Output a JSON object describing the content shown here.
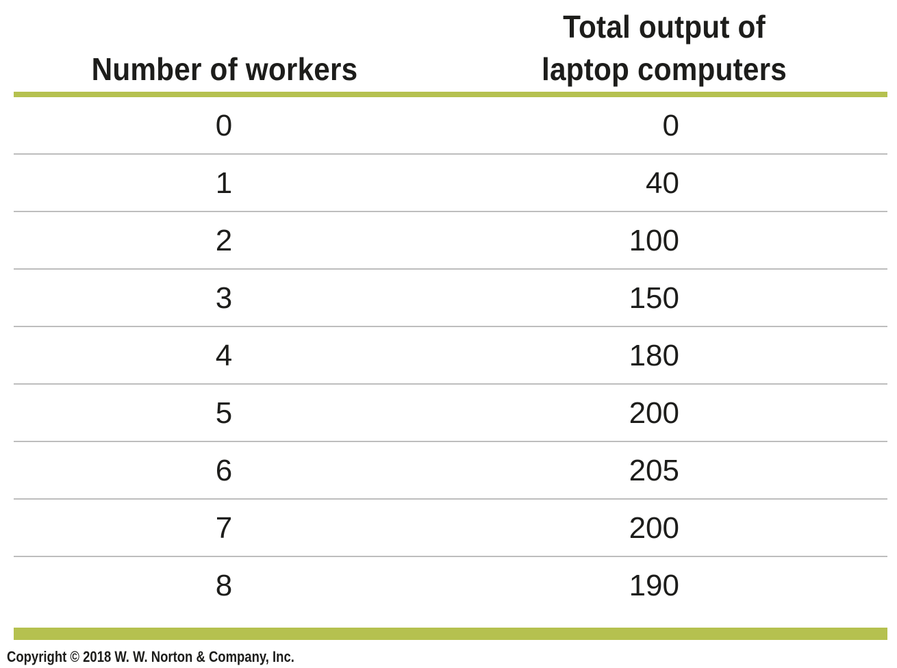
{
  "chart_data": {
    "type": "table",
    "columns": [
      "Number of workers",
      "Total output of\nlaptop computers"
    ],
    "rows": [
      [
        "0",
        "0"
      ],
      [
        "1",
        "40"
      ],
      [
        "2",
        "100"
      ],
      [
        "3",
        "150"
      ],
      [
        "4",
        "180"
      ],
      [
        "5",
        "200"
      ],
      [
        "6",
        "205"
      ],
      [
        "7",
        "200"
      ],
      [
        "8",
        "190"
      ]
    ],
    "x": [
      0,
      1,
      2,
      3,
      4,
      5,
      6,
      7,
      8
    ],
    "y": [
      0,
      40,
      100,
      150,
      180,
      200,
      205,
      200,
      190
    ]
  },
  "copyright": "Copyright © 2018 W. W. Norton & Company, Inc.",
  "colors": {
    "accent_rule": "#b5c14f",
    "row_divider": "#bdbdbd",
    "text": "#1d1d1b"
  }
}
